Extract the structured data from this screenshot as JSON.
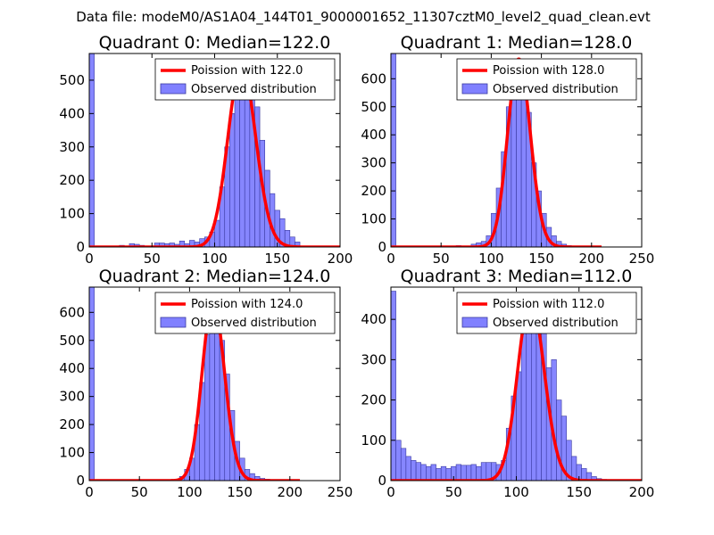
{
  "figure": {
    "suptitle": "Data file: modeM0/AS1A04_144T01_9000001652_11307cztM0_level2_quad_clean.evt"
  },
  "colors": {
    "bar_fill": "#8080ff",
    "bar_edge": "#3a3aa0",
    "fit_line": "#ff0000",
    "axes": "#000000"
  },
  "chart_data": [
    {
      "type": "bar",
      "title": "Quadrant 0: Median=122.0",
      "xlim": [
        0,
        200
      ],
      "ylim": [
        0,
        580
      ],
      "xticks": [
        0,
        50,
        100,
        150,
        200
      ],
      "yticks": [
        0,
        100,
        200,
        300,
        400,
        500
      ],
      "bin_width": 4,
      "bins": [
        [
          0,
          580
        ],
        [
          24,
          5
        ],
        [
          32,
          10
        ],
        [
          36,
          8
        ],
        [
          40,
          5
        ],
        [
          52,
          12
        ],
        [
          56,
          12
        ],
        [
          60,
          10
        ],
        [
          64,
          12
        ],
        [
          68,
          8
        ],
        [
          72,
          18
        ],
        [
          76,
          10
        ],
        [
          80,
          20
        ],
        [
          84,
          15
        ],
        [
          88,
          25
        ],
        [
          92,
          30
        ],
        [
          96,
          45
        ],
        [
          100,
          80
        ],
        [
          104,
          180
        ],
        [
          108,
          300
        ],
        [
          112,
          400
        ],
        [
          116,
          470
        ],
        [
          120,
          520
        ],
        [
          124,
          545
        ],
        [
          128,
          480
        ],
        [
          132,
          420
        ],
        [
          136,
          320
        ],
        [
          140,
          230
        ],
        [
          144,
          160
        ],
        [
          148,
          110
        ],
        [
          152,
          85
        ],
        [
          156,
          50
        ],
        [
          160,
          30
        ],
        [
          164,
          15
        ]
      ],
      "fit_mean": 122,
      "legend": [
        "Poission with 122.0",
        "Observed distribution"
      ]
    },
    {
      "type": "bar",
      "title": "Quadrant 1: Median=128.0",
      "xlim": [
        0,
        250
      ],
      "ylim": [
        0,
        690
      ],
      "xticks": [
        0,
        50,
        100,
        150,
        200,
        250
      ],
      "yticks": [
        0,
        100,
        200,
        300,
        400,
        500,
        600
      ],
      "bin_width": 5,
      "bins": [
        [
          0,
          690
        ],
        [
          65,
          5
        ],
        [
          80,
          10
        ],
        [
          85,
          15
        ],
        [
          90,
          20
        ],
        [
          95,
          40
        ],
        [
          100,
          120
        ],
        [
          105,
          210
        ],
        [
          110,
          340
        ],
        [
          115,
          500
        ],
        [
          120,
          600
        ],
        [
          125,
          670
        ],
        [
          130,
          620
        ],
        [
          135,
          480
        ],
        [
          140,
          300
        ],
        [
          145,
          200
        ],
        [
          150,
          120
        ],
        [
          155,
          70
        ],
        [
          160,
          40
        ],
        [
          165,
          20
        ],
        [
          170,
          10
        ],
        [
          175,
          5
        ]
      ],
      "fit_mean": 128,
      "legend": [
        "Poission with 128.0",
        "Observed distribution"
      ]
    },
    {
      "type": "bar",
      "title": "Quadrant 2: Median=124.0",
      "xlim": [
        0,
        250
      ],
      "ylim": [
        0,
        690
      ],
      "xticks": [
        0,
        50,
        100,
        150,
        200,
        250
      ],
      "yticks": [
        0,
        100,
        200,
        300,
        400,
        500,
        600
      ],
      "bin_width": 5,
      "bins": [
        [
          0,
          690
        ],
        [
          85,
          5
        ],
        [
          90,
          15
        ],
        [
          95,
          40
        ],
        [
          100,
          80
        ],
        [
          105,
          200
        ],
        [
          110,
          350
        ],
        [
          115,
          520
        ],
        [
          120,
          640
        ],
        [
          125,
          610
        ],
        [
          130,
          500
        ],
        [
          135,
          380
        ],
        [
          140,
          250
        ],
        [
          145,
          140
        ],
        [
          150,
          80
        ],
        [
          155,
          40
        ],
        [
          160,
          25
        ],
        [
          165,
          15
        ],
        [
          170,
          8
        ],
        [
          175,
          5
        ],
        [
          180,
          3
        ]
      ],
      "fit_mean": 124,
      "legend": [
        "Poission with 124.0",
        "Observed distribution"
      ]
    },
    {
      "type": "bar",
      "title": "Quadrant 3: Median=112.0",
      "xlim": [
        0,
        200
      ],
      "ylim": [
        0,
        480
      ],
      "xticks": [
        0,
        50,
        100,
        150,
        200
      ],
      "yticks": [
        0,
        100,
        200,
        300,
        400
      ],
      "bin_width": 4,
      "bins": [
        [
          0,
          470
        ],
        [
          4,
          100
        ],
        [
          8,
          80
        ],
        [
          12,
          60
        ],
        [
          16,
          50
        ],
        [
          20,
          45
        ],
        [
          24,
          40
        ],
        [
          28,
          35
        ],
        [
          32,
          40
        ],
        [
          36,
          30
        ],
        [
          40,
          35
        ],
        [
          44,
          30
        ],
        [
          48,
          35
        ],
        [
          52,
          40
        ],
        [
          56,
          38
        ],
        [
          60,
          38
        ],
        [
          64,
          40
        ],
        [
          68,
          35
        ],
        [
          72,
          45
        ],
        [
          76,
          45
        ],
        [
          80,
          45
        ],
        [
          84,
          40
        ],
        [
          88,
          50
        ],
        [
          92,
          130
        ],
        [
          96,
          210
        ],
        [
          100,
          270
        ],
        [
          104,
          380
        ],
        [
          108,
          420
        ],
        [
          112,
          450
        ],
        [
          116,
          440
        ],
        [
          120,
          410
        ],
        [
          124,
          280
        ],
        [
          128,
          300
        ],
        [
          132,
          200
        ],
        [
          136,
          160
        ],
        [
          140,
          100
        ],
        [
          144,
          60
        ],
        [
          148,
          40
        ],
        [
          152,
          30
        ],
        [
          156,
          20
        ],
        [
          160,
          10
        ],
        [
          164,
          5
        ],
        [
          168,
          3
        ]
      ],
      "fit_mean": 112,
      "legend": [
        "Poission with 112.0",
        "Observed distribution"
      ]
    }
  ]
}
